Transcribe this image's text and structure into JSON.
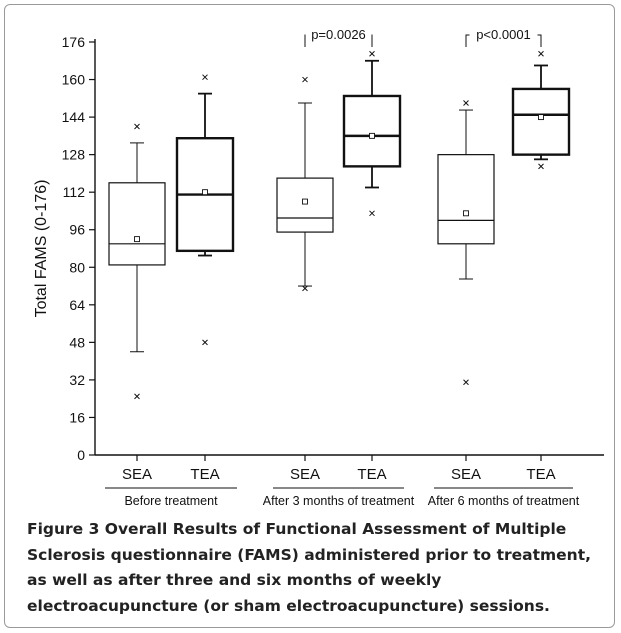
{
  "chart_data": {
    "type": "box",
    "ylabel": "Total FAMS (0-176)",
    "ylim": [
      0,
      176
    ],
    "yticks": [
      0,
      16,
      32,
      48,
      64,
      80,
      96,
      112,
      128,
      144,
      160,
      176
    ],
    "categories": [
      "SEA",
      "TEA",
      "SEA",
      "TEA",
      "SEA",
      "TEA"
    ],
    "groups": [
      {
        "label": "Before treatment",
        "from": 0,
        "to": 1
      },
      {
        "label": "After 3 months of treatment",
        "from": 2,
        "to": 3
      },
      {
        "label": "After 6 months of treatment",
        "from": 4,
        "to": 5
      }
    ],
    "boxes": [
      {
        "min": 44,
        "q1": 81,
        "median": 90,
        "q3": 116,
        "max": 133,
        "mean": 92,
        "outliers": [
          140,
          25
        ],
        "bold": false
      },
      {
        "min": 85,
        "q1": 87,
        "median": 111,
        "q3": 135,
        "max": 154,
        "mean": 112,
        "outliers": [
          161,
          48
        ],
        "bold": true
      },
      {
        "min": 72,
        "q1": 95,
        "median": 101,
        "q3": 118,
        "max": 150,
        "mean": 108,
        "outliers": [
          160,
          71
        ],
        "bold": false
      },
      {
        "min": 114,
        "q1": 123,
        "median": 136,
        "q3": 153,
        "max": 168,
        "mean": 136,
        "outliers": [
          171,
          103
        ],
        "bold": true
      },
      {
        "min": 75,
        "q1": 90,
        "median": 100,
        "q3": 128,
        "max": 147,
        "mean": 103,
        "outliers": [
          150,
          31
        ],
        "bold": false
      },
      {
        "min": 126,
        "q1": 128,
        "median": 145,
        "q3": 156,
        "max": 166,
        "mean": 144,
        "outliers": [
          171,
          123
        ],
        "bold": true
      }
    ],
    "annotations": [
      {
        "text": "p=0.0026",
        "from": 2,
        "to": 3
      },
      {
        "text": "p<0.0001",
        "from": 4,
        "to": 5
      }
    ]
  },
  "caption": {
    "label": "Figure 3",
    "text": "Overall Results of Functional Assessment of Multiple Sclerosis questionnaire (FAMS) administered prior to treatment, as well as after three and six months of weekly electroacupuncture (or sham electroacupuncture) sessions."
  }
}
